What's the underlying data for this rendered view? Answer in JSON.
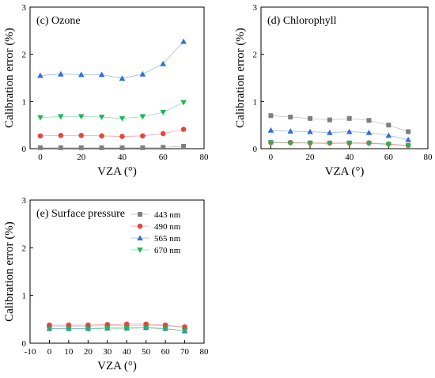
{
  "chart_data": [
    {
      "type": "line",
      "title": "(c) Ozone",
      "xlabel": "VZA (°)",
      "ylabel": "Calibration error (%)",
      "xlim": [
        -5,
        80
      ],
      "ylim": [
        0,
        3
      ],
      "xticks": [
        0,
        20,
        40,
        60,
        80
      ],
      "yticks": [
        0,
        1,
        2,
        3
      ],
      "x": [
        0,
        10,
        20,
        30,
        40,
        50,
        60,
        70
      ],
      "series": [
        {
          "name": "443 nm",
          "color": "#7f7f7f",
          "marker": "square",
          "values": [
            0.02,
            0.02,
            0.02,
            0.02,
            0.02,
            0.02,
            0.03,
            0.05
          ]
        },
        {
          "name": "490 nm",
          "color": "#e8453c",
          "marker": "circle",
          "values": [
            0.27,
            0.28,
            0.28,
            0.27,
            0.26,
            0.27,
            0.32,
            0.41
          ]
        },
        {
          "name": "565 nm",
          "color": "#2f6fd6",
          "marker": "triangle-up",
          "values": [
            1.55,
            1.58,
            1.57,
            1.57,
            1.49,
            1.58,
            1.8,
            2.27
          ]
        },
        {
          "name": "670 nm",
          "color": "#22b35e",
          "marker": "triangle-down",
          "values": [
            0.66,
            0.68,
            0.68,
            0.67,
            0.64,
            0.68,
            0.77,
            0.98
          ]
        }
      ]
    },
    {
      "type": "line",
      "title": "(d) Chlorophyll",
      "xlabel": "VZA (°)",
      "ylabel": "Calibration error (%)",
      "xlim": [
        -5,
        80
      ],
      "ylim": [
        0,
        3
      ],
      "xticks": [
        0,
        20,
        40,
        60,
        80
      ],
      "yticks": [
        0,
        1,
        2,
        3
      ],
      "x": [
        0,
        10,
        20,
        30,
        40,
        50,
        60,
        70
      ],
      "series": [
        {
          "name": "443 nm",
          "color": "#7f7f7f",
          "marker": "square",
          "values": [
            0.7,
            0.67,
            0.64,
            0.61,
            0.64,
            0.6,
            0.5,
            0.36
          ]
        },
        {
          "name": "490 nm",
          "color": "#e8453c",
          "marker": "circle",
          "values": [
            0.13,
            0.13,
            0.12,
            0.12,
            0.12,
            0.12,
            0.1,
            0.07
          ]
        },
        {
          "name": "565 nm",
          "color": "#2f6fd6",
          "marker": "triangle-up",
          "values": [
            0.39,
            0.37,
            0.36,
            0.34,
            0.36,
            0.34,
            0.28,
            0.19
          ]
        },
        {
          "name": "670 nm",
          "color": "#22b35e",
          "marker": "triangle-down",
          "values": [
            0.13,
            0.12,
            0.12,
            0.11,
            0.12,
            0.11,
            0.09,
            0.06
          ]
        }
      ]
    },
    {
      "type": "line",
      "title": "(e) Surface pressure",
      "xlabel": "VZA (°)",
      "ylabel": "Calibration error (%)",
      "xlim": [
        -10,
        80
      ],
      "ylim": [
        0,
        3
      ],
      "xticks": [
        -10,
        0,
        10,
        20,
        30,
        40,
        50,
        60,
        70,
        80
      ],
      "yticks": [
        0,
        1,
        2,
        3
      ],
      "x": [
        0,
        10,
        20,
        30,
        40,
        50,
        60,
        70
      ],
      "legend": "top-right",
      "series": [
        {
          "name": "443 nm",
          "color": "#7f7f7f",
          "marker": "square",
          "values": [
            0.36,
            0.36,
            0.36,
            0.37,
            0.37,
            0.38,
            0.37,
            0.33
          ]
        },
        {
          "name": "490 nm",
          "color": "#e8453c",
          "marker": "circle",
          "values": [
            0.38,
            0.38,
            0.38,
            0.39,
            0.4,
            0.4,
            0.38,
            0.34
          ]
        },
        {
          "name": "565 nm",
          "color": "#2f6fd6",
          "marker": "triangle-up",
          "values": [
            0.31,
            0.31,
            0.31,
            0.32,
            0.32,
            0.33,
            0.31,
            0.26
          ]
        },
        {
          "name": "670 nm",
          "color": "#22b35e",
          "marker": "triangle-down",
          "values": [
            0.3,
            0.3,
            0.3,
            0.31,
            0.31,
            0.32,
            0.3,
            0.26
          ]
        }
      ]
    }
  ]
}
